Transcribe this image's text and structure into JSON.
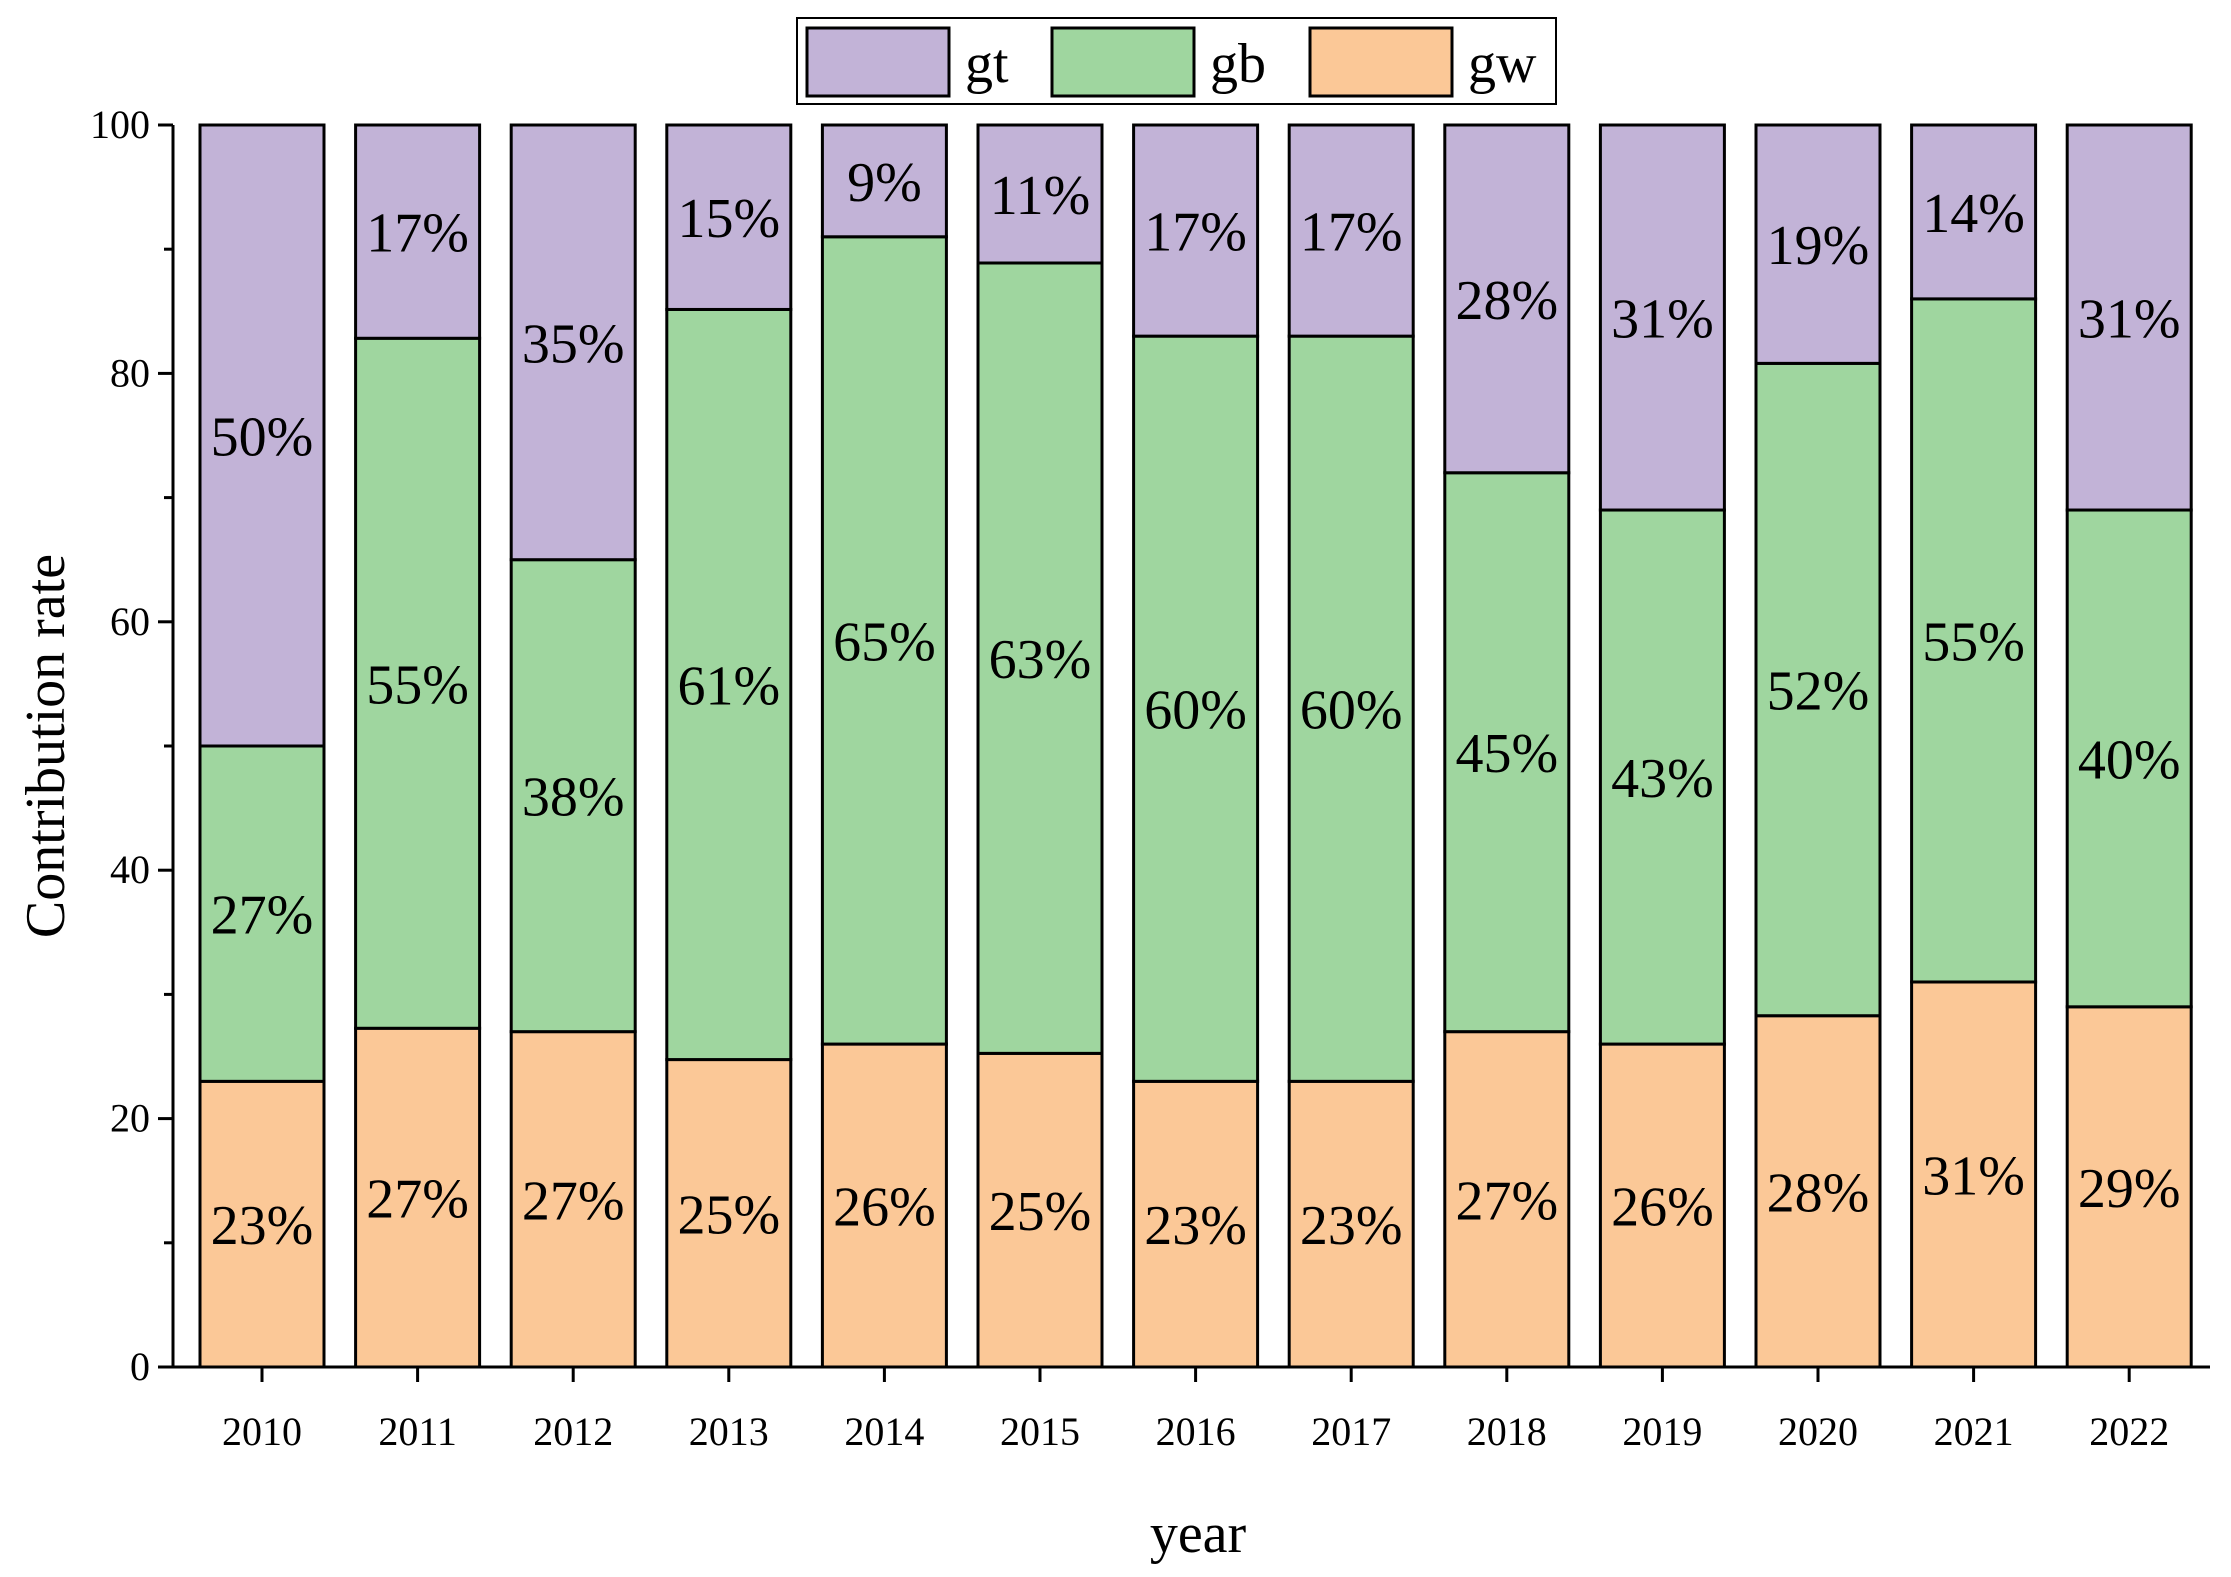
{
  "colors": {
    "gt": "#C2B3D7",
    "gb": "#9FD69F",
    "gw": "#FBC897",
    "stroke": "#000000"
  },
  "chart_data": {
    "type": "bar",
    "stacked": true,
    "title": "",
    "xlabel": "year",
    "ylabel": "Contribution rate",
    "ylim": [
      0,
      100
    ],
    "yticks": [
      "0",
      "20",
      "40",
      "60",
      "80",
      "100"
    ],
    "categories": [
      "2010",
      "2011",
      "2012",
      "2013",
      "2014",
      "2015",
      "2016",
      "2017",
      "2018",
      "2019",
      "2020",
      "2021",
      "2022"
    ],
    "legend_position": "top-center",
    "series": [
      {
        "name": "gw",
        "values": [
          23,
          27,
          27,
          25,
          26,
          25,
          23,
          23,
          27,
          26,
          28,
          31,
          29
        ],
        "labels": [
          "23%",
          "27%",
          "27%",
          "25%",
          "26%",
          "25%",
          "23%",
          "23%",
          "27%",
          "26%",
          "28%",
          "31%",
          "29%"
        ]
      },
      {
        "name": "gb",
        "values": [
          27,
          55,
          38,
          61,
          65,
          63,
          60,
          60,
          45,
          43,
          52,
          55,
          40
        ],
        "labels": [
          "27%",
          "55%",
          "38%",
          "61%",
          "65%",
          "63%",
          "60%",
          "60%",
          "45%",
          "43%",
          "52%",
          "55%",
          "40%"
        ]
      },
      {
        "name": "gt",
        "values": [
          50,
          17,
          35,
          15,
          9,
          11,
          17,
          17,
          28,
          31,
          19,
          14,
          31
        ],
        "labels": [
          "50%",
          "17%",
          "35%",
          "15%",
          "9%",
          "11%",
          "17%",
          "17%",
          "28%",
          "31%",
          "19%",
          "14%",
          "31%"
        ]
      }
    ],
    "legend": [
      "gt",
      "gb",
      "gw"
    ]
  }
}
